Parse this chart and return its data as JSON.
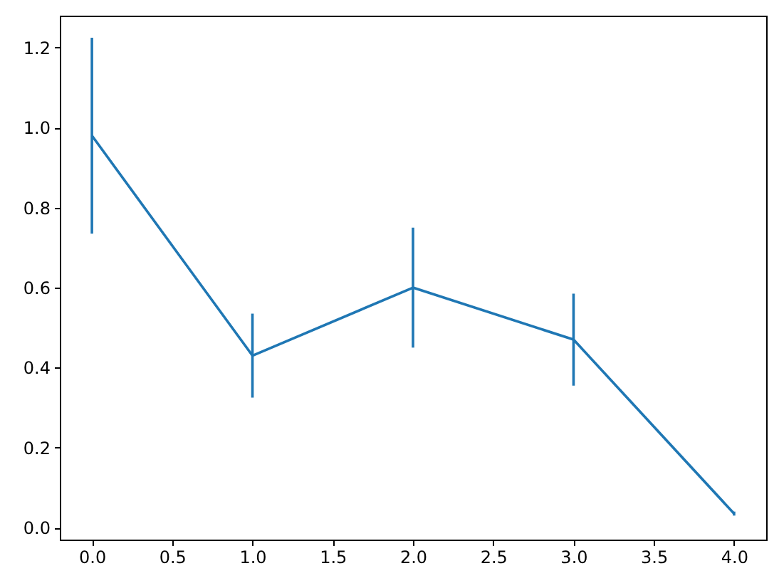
{
  "chart_data": {
    "type": "line",
    "x": [
      0,
      1,
      2,
      3,
      4
    ],
    "series": [
      {
        "color": "#1f77b4",
        "values": [
          0.98,
          0.43,
          0.6,
          0.47,
          0.035
        ],
        "errors": [
          0.245,
          0.105,
          0.15,
          0.115,
          0.005
        ]
      }
    ],
    "xlim": [
      -0.2,
      4.2
    ],
    "xticks": [
      {
        "value": 0,
        "label": "0.0"
      },
      0.5,
      {
        "value": 1,
        "label": "1.0"
      },
      1.5,
      {
        "value": 2,
        "label": "2.0"
      },
      2.5,
      {
        "value": 3,
        "label": "3.0"
      },
      3.5,
      {
        "value": 4,
        "label": "4.0"
      }
    ],
    "ylim": [
      -0.03,
      1.28
    ],
    "yticks": [
      {
        "value": 0,
        "label": "0.0"
      },
      0.2,
      0.4,
      0.6,
      0.8,
      {
        "value": 1,
        "label": "1.0"
      },
      1.2
    ],
    "grid": false
  }
}
